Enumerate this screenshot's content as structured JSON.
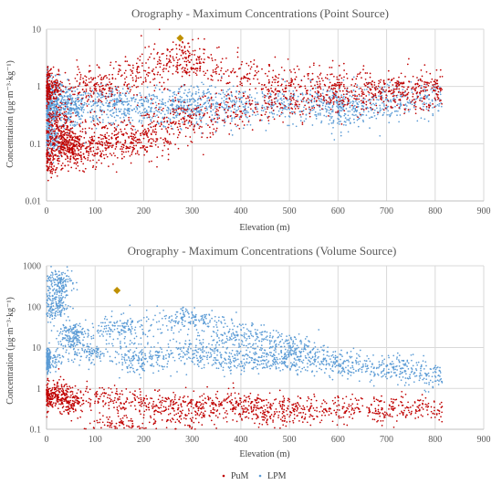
{
  "colors": {
    "pum": "#c00000",
    "lpm": "#5b9bd5",
    "max": "#bf9000",
    "grid": "#d9d9d9",
    "text": "#595959"
  },
  "legend": {
    "pum": "PuM",
    "lpm": "LPM"
  },
  "chart_data": [
    {
      "type": "scatter",
      "title": "Orography - Maximum Concentrations (Point Source)",
      "xlabel": "Elevation (m)",
      "ylabel": "Concentration (µg·m⁻³·kg⁻¹)",
      "xlim": [
        0,
        900
      ],
      "ylim": [
        0.01,
        10
      ],
      "yscale": "log",
      "grid": true,
      "xticks": [
        0,
        100,
        200,
        300,
        400,
        500,
        600,
        700,
        800,
        900
      ],
      "yticks": [
        {
          "value": 0.01,
          "label": "0.01"
        },
        {
          "value": 0.1,
          "label": "0.1"
        },
        {
          "value": 1,
          "label": "1"
        },
        {
          "value": 10,
          "label": "10"
        }
      ],
      "highlight": {
        "x": 275,
        "y": 7.0
      },
      "series": [
        {
          "name": "PuM",
          "approx_points": [
            [
              0,
              0.05
            ],
            [
              5,
              0.95
            ],
            [
              10,
              1.0
            ],
            [
              20,
              0.25
            ],
            [
              30,
              0.13
            ],
            [
              40,
              0.09
            ],
            [
              55,
              0.07
            ],
            [
              70,
              0.07
            ],
            [
              80,
              0.12
            ],
            [
              100,
              0.85
            ],
            [
              130,
              0.12
            ],
            [
              160,
              0.09
            ],
            [
              200,
              0.12
            ],
            [
              250,
              0.2
            ],
            [
              300,
              0.3
            ],
            [
              400,
              0.4
            ],
            [
              500,
              0.55
            ],
            [
              600,
              0.65
            ],
            [
              700,
              0.75
            ],
            [
              800,
              0.85
            ],
            [
              100,
              1.1
            ],
            [
              200,
              1.6
            ],
            [
              275,
              3.5
            ],
            [
              300,
              2.5
            ],
            [
              400,
              1.5
            ],
            [
              500,
              1.2
            ],
            [
              600,
              1.0
            ],
            [
              700,
              0.9
            ],
            [
              800,
              0.8
            ]
          ]
        },
        {
          "name": "LPM",
          "approx_points": [
            [
              0,
              0.35
            ],
            [
              20,
              0.45
            ],
            [
              50,
              0.4
            ],
            [
              100,
              0.45
            ],
            [
              150,
              0.5
            ],
            [
              200,
              0.4
            ],
            [
              300,
              0.4
            ],
            [
              400,
              0.45
            ],
            [
              500,
              0.5
            ],
            [
              600,
              0.5
            ],
            [
              700,
              0.55
            ],
            [
              800,
              0.6
            ],
            [
              10,
              0.12
            ],
            [
              10,
              0.9
            ],
            [
              300,
              0.55
            ],
            [
              600,
              0.35
            ]
          ]
        }
      ]
    },
    {
      "type": "scatter",
      "title": "Orography - Maximum Concentrations (Volume Source)",
      "xlabel": "Elevation (m)",
      "ylabel": "Concentration (µg·m⁻³·kg⁻¹)",
      "xlim": [
        0,
        900
      ],
      "ylim": [
        0.1,
        1000
      ],
      "yscale": "log",
      "grid": true,
      "xticks": [
        0,
        100,
        200,
        300,
        400,
        500,
        600,
        700,
        800,
        900
      ],
      "yticks": [
        {
          "value": 0.1,
          "label": "0.1"
        },
        {
          "value": 1,
          "label": "1"
        },
        {
          "value": 10,
          "label": "10"
        },
        {
          "value": 100,
          "label": "100"
        },
        {
          "value": 1000,
          "label": "1000"
        }
      ],
      "highlight": {
        "x": 145,
        "y": 250
      },
      "series": [
        {
          "name": "PuM",
          "approx_points": [
            [
              0,
              0.6
            ],
            [
              20,
              0.8
            ],
            [
              50,
              0.5
            ],
            [
              100,
              0.6
            ],
            [
              200,
              0.45
            ],
            [
              300,
              0.4
            ],
            [
              400,
              0.4
            ],
            [
              500,
              0.35
            ],
            [
              600,
              0.3
            ],
            [
              700,
              0.3
            ],
            [
              800,
              0.3
            ],
            [
              150,
              0.12
            ],
            [
              300,
              0.2
            ],
            [
              450,
              0.25
            ]
          ]
        },
        {
          "name": "LPM",
          "approx_points": [
            [
              0,
              5
            ],
            [
              20,
              100
            ],
            [
              25,
              400
            ],
            [
              50,
              20
            ],
            [
              100,
              8
            ],
            [
              150,
              30
            ],
            [
              200,
              5
            ],
            [
              300,
              8
            ],
            [
              400,
              5
            ],
            [
              500,
              5
            ],
            [
              600,
              4
            ],
            [
              700,
              3
            ],
            [
              800,
              2
            ],
            [
              300,
              50
            ],
            [
              400,
              20
            ],
            [
              500,
              10
            ]
          ]
        }
      ]
    }
  ]
}
